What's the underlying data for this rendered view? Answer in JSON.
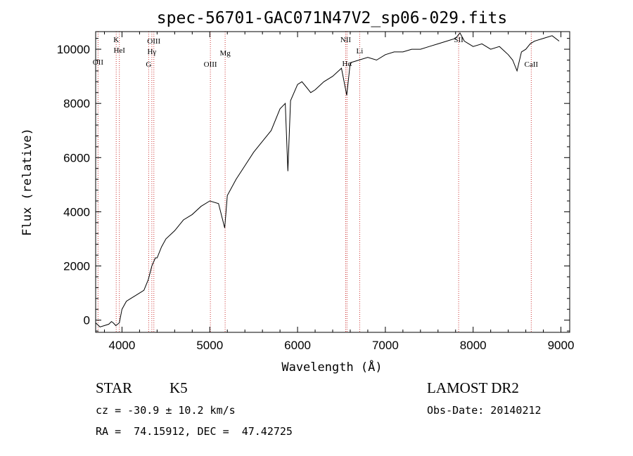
{
  "chart_data": {
    "type": "line",
    "title": "spec-56701-GAC071N47V2_sp06-029.fits",
    "xlabel": "Wavelength (Å)",
    "ylabel": "Flux (relative)",
    "xlim": [
      3700,
      9100
    ],
    "ylim": [
      -450,
      10650
    ],
    "x_ticks": [
      4000,
      5000,
      6000,
      7000,
      8000,
      9000
    ],
    "y_ticks": [
      0,
      2000,
      4000,
      6000,
      8000,
      10000
    ],
    "grid": false,
    "legend": "none",
    "series": [
      {
        "x": [
          3700,
          3750,
          3800,
          3850,
          3880,
          3900,
          3930,
          3950,
          3970,
          4000,
          4050,
          4100,
          4150,
          4200,
          4250,
          4300,
          4340,
          4380,
          4400,
          4450,
          4500,
          4600,
          4700,
          4800,
          4900,
          5000,
          5100,
          5170,
          5200,
          5300,
          5400,
          5500,
          5600,
          5700,
          5800,
          5860,
          5890,
          5920,
          6000,
          6050,
          6100,
          6150,
          6200,
          6300,
          6400,
          6500,
          6560,
          6600,
          6700,
          6800,
          6900,
          7000,
          7100,
          7200,
          7300,
          7400,
          7500,
          7600,
          7700,
          7800,
          7850,
          7900,
          8000,
          8100,
          8200,
          8300,
          8400,
          8450,
          8500,
          8550,
          8600,
          8650,
          8700,
          8800,
          8900,
          8980
        ],
        "y": [
          -100,
          -250,
          -200,
          -150,
          -50,
          -100,
          -200,
          -150,
          -100,
          400,
          700,
          800,
          900,
          1000,
          1100,
          1500,
          2000,
          2300,
          2300,
          2700,
          3000,
          3300,
          3700,
          3900,
          4200,
          4400,
          4300,
          3400,
          4600,
          5200,
          5700,
          6200,
          6600,
          7000,
          7800,
          8000,
          5500,
          8100,
          8700,
          8800,
          8600,
          8400,
          8500,
          8800,
          9000,
          9300,
          8300,
          9500,
          9600,
          9700,
          9600,
          9800,
          9900,
          9900,
          10000,
          10000,
          10100,
          10200,
          10300,
          10400,
          10600,
          10300,
          10100,
          10200,
          10000,
          10100,
          9800,
          9600,
          9200,
          9900,
          10000,
          10200,
          10300,
          10400,
          10500,
          10300
        ]
      }
    ],
    "spectral_lines": [
      {
        "name": "OII",
        "wavelength": 3727
      },
      {
        "name": "K",
        "wavelength": 3934
      },
      {
        "name": "HeI",
        "wavelength": 3970
      },
      {
        "name": "G",
        "wavelength": 4304
      },
      {
        "name": "OIII",
        "wavelength": 4363
      },
      {
        "name": "Hγ",
        "wavelength": 4340
      },
      {
        "name": "OIII",
        "wavelength": 5007
      },
      {
        "name": "Mg",
        "wavelength": 5175
      },
      {
        "name": "NII",
        "wavelength": 6548
      },
      {
        "name": "Hα",
        "wavelength": 6563
      },
      {
        "name": "Li",
        "wavelength": 6708
      },
      {
        "name": "SII",
        "wavelength": 7835
      },
      {
        "name": "CaII",
        "wavelength": 8662
      }
    ]
  },
  "info": {
    "class_label": "STAR",
    "subclass": "K5",
    "survey": "LAMOST DR2",
    "cz": "cz = -30.9 ± 10.2 km/s",
    "obs_date": "Obs-Date: 20140212",
    "coords": "RA =  74.15912, DEC =  47.42725"
  },
  "colors": {
    "spectrum": "#000000",
    "line_marker": "#cc3333",
    "background": "#ffffff"
  }
}
